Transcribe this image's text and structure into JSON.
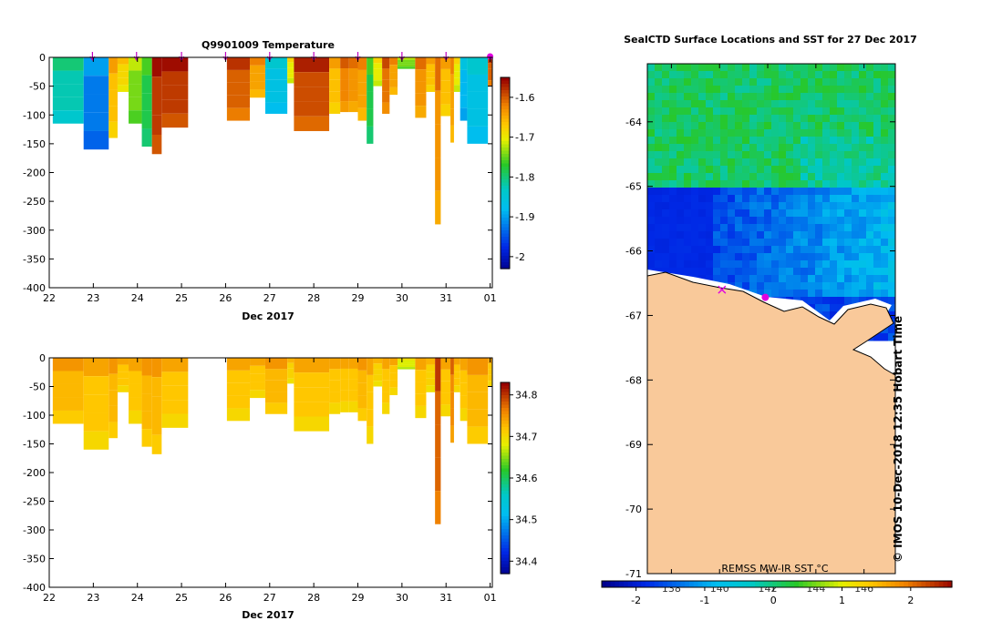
{
  "chart_data": [
    {
      "type": "heatmap",
      "title": "Q9901009  Temperature",
      "xlabel": "Dec 2017",
      "ylabel": "",
      "x_ticks": [
        "22",
        "23",
        "24",
        "25",
        "26",
        "27",
        "28",
        "29",
        "30",
        "31",
        "01"
      ],
      "y_ticks": [
        "0",
        "-50",
        "-100",
        "-150",
        "-200",
        "-250",
        "-300",
        "-350",
        "-400"
      ],
      "ylim": [
        -400,
        0
      ],
      "xlim": [
        22,
        32.05
      ],
      "colorbar": {
        "ticks": [
          "-1.6",
          "-1.7",
          "-1.8",
          "-1.9",
          "-2"
        ],
        "range": [
          -2.03,
          -1.55
        ]
      },
      "markers_x": [
        22.98,
        23.98,
        25.0,
        26.0,
        27.0,
        28.0,
        29.0,
        30.0,
        31.0,
        32.0
      ],
      "casts": [
        {
          "x0": 22.08,
          "x1": 22.78,
          "depth": 115,
          "value": -1.82
        },
        {
          "x0": 22.78,
          "x1": 23.35,
          "depth": 160,
          "value": -1.92
        },
        {
          "x0": 23.35,
          "x1": 23.55,
          "depth": 140,
          "value": -1.66
        },
        {
          "x0": 23.55,
          "x1": 23.8,
          "depth": 60,
          "value": -1.68
        },
        {
          "x0": 23.8,
          "x1": 24.1,
          "depth": 115,
          "value": -1.74
        },
        {
          "x0": 24.1,
          "x1": 24.33,
          "depth": 155,
          "value": -1.78
        },
        {
          "x0": 24.33,
          "x1": 24.55,
          "depth": 168,
          "value": -1.58
        },
        {
          "x0": 24.55,
          "x1": 25.15,
          "depth": 122,
          "value": -1.58
        },
        {
          "x0": 26.03,
          "x1": 26.55,
          "depth": 110,
          "value": -1.6
        },
        {
          "x0": 26.55,
          "x1": 26.9,
          "depth": 70,
          "value": -1.64
        },
        {
          "x0": 26.9,
          "x1": 27.4,
          "depth": 98,
          "value": -1.86
        },
        {
          "x0": 27.4,
          "x1": 27.55,
          "depth": 45,
          "value": -1.7
        },
        {
          "x0": 27.55,
          "x1": 28.35,
          "depth": 128,
          "value": -1.59
        },
        {
          "x0": 28.35,
          "x1": 28.6,
          "depth": 98,
          "value": -1.66
        },
        {
          "x0": 28.6,
          "x1": 28.8,
          "depth": 95,
          "value": -1.62
        },
        {
          "x0": 28.8,
          "x1": 29.0,
          "depth": 95,
          "value": -1.63
        },
        {
          "x0": 29.0,
          "x1": 29.2,
          "depth": 110,
          "value": -1.64
        },
        {
          "x0": 29.2,
          "x1": 29.35,
          "depth": 150,
          "value": -1.78
        },
        {
          "x0": 29.35,
          "x1": 29.55,
          "depth": 50,
          "value": -1.7
        },
        {
          "x0": 29.55,
          "x1": 29.72,
          "depth": 98,
          "value": -1.61
        },
        {
          "x0": 29.72,
          "x1": 29.9,
          "depth": 65,
          "value": -1.64
        },
        {
          "x0": 29.9,
          "x1": 30.3,
          "depth": 20,
          "value": -1.74
        },
        {
          "x0": 30.3,
          "x1": 30.55,
          "depth": 105,
          "value": -1.63
        },
        {
          "x0": 30.55,
          "x1": 30.75,
          "depth": 60,
          "value": -1.66
        },
        {
          "x0": 30.75,
          "x1": 30.88,
          "depth": 290,
          "value": -1.63
        },
        {
          "x0": 30.88,
          "x1": 31.1,
          "depth": 102,
          "value": -1.66
        },
        {
          "x0": 31.1,
          "x1": 31.18,
          "depth": 148,
          "value": -1.64
        },
        {
          "x0": 31.18,
          "x1": 31.32,
          "depth": 60,
          "value": -1.7
        },
        {
          "x0": 31.32,
          "x1": 31.48,
          "depth": 110,
          "value": -1.88
        },
        {
          "x0": 31.48,
          "x1": 31.95,
          "depth": 150,
          "value": -1.86
        },
        {
          "x0": 31.95,
          "x1": 32.05,
          "depth": 50,
          "value": -1.6
        }
      ]
    },
    {
      "type": "heatmap",
      "title": "",
      "xlabel": "Dec 2017",
      "ylabel": "",
      "x_ticks": [
        "22",
        "23",
        "24",
        "25",
        "26",
        "27",
        "28",
        "29",
        "30",
        "31",
        "01"
      ],
      "y_ticks": [
        "0",
        "-50",
        "-100",
        "-150",
        "-200",
        "-250",
        "-300",
        "-350",
        "-400"
      ],
      "ylim": [
        -400,
        0
      ],
      "xlim": [
        22,
        32.05
      ],
      "colorbar": {
        "ticks": [
          "34.8",
          "34.7",
          "34.6",
          "34.5",
          "34.4"
        ],
        "range": [
          34.37,
          34.83
        ]
      },
      "casts": [
        {
          "x0": 22.08,
          "x1": 22.78,
          "depth": 115,
          "value": 34.73
        },
        {
          "x0": 22.78,
          "x1": 23.35,
          "depth": 160,
          "value": 34.72
        },
        {
          "x0": 23.35,
          "x1": 23.55,
          "depth": 140,
          "value": 34.73
        },
        {
          "x0": 23.55,
          "x1": 23.8,
          "depth": 60,
          "value": 34.72
        },
        {
          "x0": 23.8,
          "x1": 24.1,
          "depth": 115,
          "value": 34.72
        },
        {
          "x0": 24.1,
          "x1": 24.33,
          "depth": 155,
          "value": 34.73
        },
        {
          "x0": 24.33,
          "x1": 24.55,
          "depth": 168,
          "value": 34.73
        },
        {
          "x0": 24.55,
          "x1": 25.15,
          "depth": 122,
          "value": 34.72
        },
        {
          "x0": 26.03,
          "x1": 26.55,
          "depth": 110,
          "value": 34.72
        },
        {
          "x0": 26.55,
          "x1": 26.9,
          "depth": 70,
          "value": 34.72
        },
        {
          "x0": 26.9,
          "x1": 27.4,
          "depth": 98,
          "value": 34.73
        },
        {
          "x0": 27.4,
          "x1": 27.55,
          "depth": 45,
          "value": 34.71
        },
        {
          "x0": 27.55,
          "x1": 28.35,
          "depth": 128,
          "value": 34.72
        },
        {
          "x0": 28.35,
          "x1": 28.6,
          "depth": 98,
          "value": 34.72
        },
        {
          "x0": 28.6,
          "x1": 28.8,
          "depth": 95,
          "value": 34.72
        },
        {
          "x0": 28.8,
          "x1": 29.0,
          "depth": 95,
          "value": 34.72
        },
        {
          "x0": 29.0,
          "x1": 29.2,
          "depth": 110,
          "value": 34.73
        },
        {
          "x0": 29.2,
          "x1": 29.35,
          "depth": 150,
          "value": 34.72
        },
        {
          "x0": 29.35,
          "x1": 29.55,
          "depth": 50,
          "value": 34.71
        },
        {
          "x0": 29.55,
          "x1": 29.72,
          "depth": 98,
          "value": 34.72
        },
        {
          "x0": 29.72,
          "x1": 29.9,
          "depth": 65,
          "value": 34.72
        },
        {
          "x0": 29.9,
          "x1": 30.3,
          "depth": 20,
          "value": 34.68
        },
        {
          "x0": 30.3,
          "x1": 30.55,
          "depth": 105,
          "value": 34.72
        },
        {
          "x0": 30.55,
          "x1": 30.75,
          "depth": 60,
          "value": 34.71
        },
        {
          "x0": 30.75,
          "x1": 30.88,
          "depth": 290,
          "value": 34.78
        },
        {
          "x0": 30.88,
          "x1": 31.1,
          "depth": 102,
          "value": 34.72
        },
        {
          "x0": 31.1,
          "x1": 31.18,
          "depth": 148,
          "value": 34.76
        },
        {
          "x0": 31.18,
          "x1": 31.32,
          "depth": 60,
          "value": 34.72
        },
        {
          "x0": 31.32,
          "x1": 31.48,
          "depth": 110,
          "value": 34.72
        },
        {
          "x0": 31.48,
          "x1": 31.95,
          "depth": 150,
          "value": 34.73
        },
        {
          "x0": 31.95,
          "x1": 32.05,
          "depth": 50,
          "value": 34.72
        }
      ]
    },
    {
      "type": "heatmap",
      "title": "SealCTD Surface Locations and SST for 27 Dec 2017",
      "xlabel": "",
      "ylabel": "",
      "y_ticks": [
        "-64",
        "-65",
        "-66",
        "-67",
        "-68",
        "-69",
        "-70",
        "-71"
      ],
      "ylim": [
        -71,
        -63.1
      ],
      "x_ticks": [
        "138",
        "140",
        "142",
        "144",
        "146"
      ],
      "xlim": [
        137,
        147.3
      ],
      "colorbar": {
        "ticks": [
          "-2",
          "-1",
          "0",
          "1",
          "2"
        ],
        "range": [
          -2.5,
          2.6
        ]
      },
      "sst_label": "REMSS MW-IR SST °C",
      "stations": [
        {
          "lon": 140.1,
          "lat": -66.6
        },
        {
          "lon": 141.9,
          "lat": -66.72
        }
      ]
    }
  ],
  "stamp": "© IMOS 10-Dec-2018 12:35 Hobart Time"
}
